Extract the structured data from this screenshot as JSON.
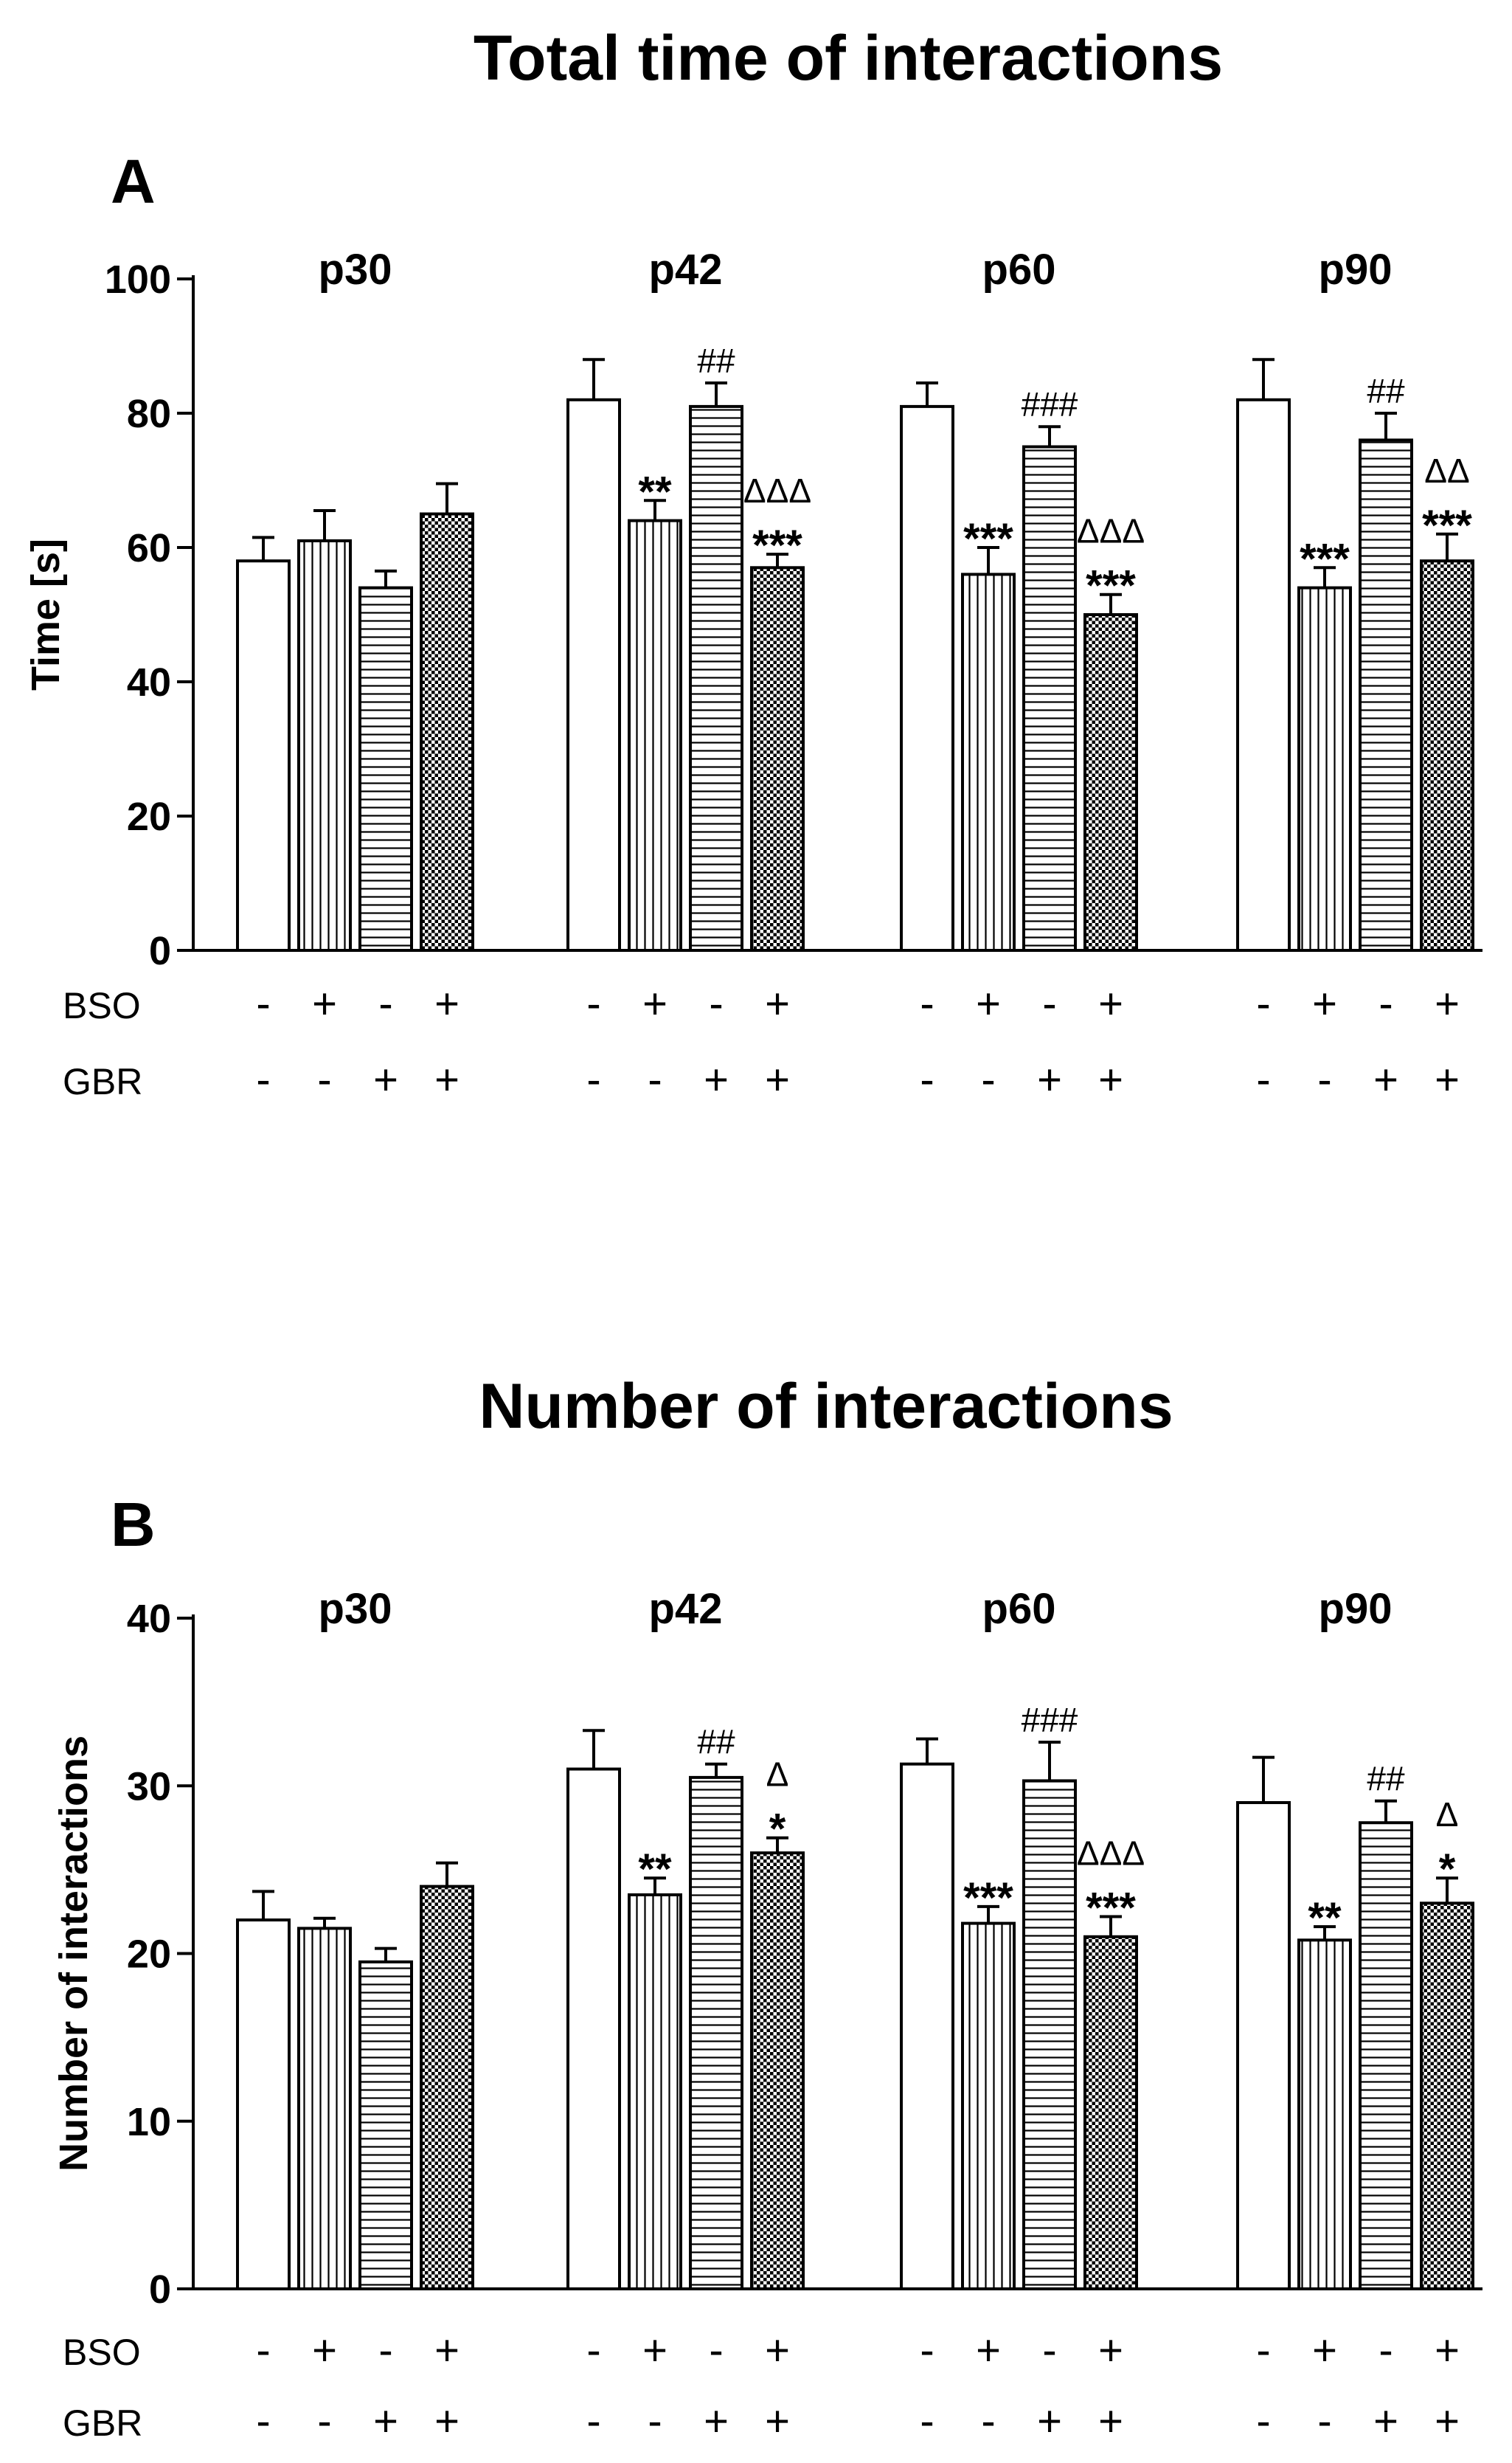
{
  "figure": {
    "title_a": "Total time of interactions",
    "title_b": "Number of interactions"
  },
  "colors": {
    "ink": "#000000",
    "bar_fill": "#ffffff"
  },
  "patterns": [
    "empty",
    "vertical-stripes",
    "horizontal-stripes",
    "checkerboard"
  ],
  "treatment_rows": [
    {
      "label": "BSO",
      "signs": [
        "-",
        "+",
        "-",
        "+"
      ]
    },
    {
      "label": "GBR",
      "signs": [
        "-",
        "-",
        "+",
        "+"
      ]
    }
  ],
  "chart_data": [
    {
      "type": "bar",
      "panel": "A",
      "title": "Total time of interactions",
      "ylabel": "Time [s]",
      "ylim": [
        0,
        100
      ],
      "yticks": [
        0,
        20,
        40,
        60,
        80,
        100
      ],
      "groups": [
        "p30",
        "p42",
        "p60",
        "p90"
      ],
      "series": [
        {
          "name": "BSO- GBR-",
          "values": [
            58,
            82,
            81,
            82
          ],
          "errors": [
            3.5,
            6,
            3.5,
            6
          ]
        },
        {
          "name": "BSO+ GBR-",
          "values": [
            61,
            64,
            56,
            54
          ],
          "errors": [
            4.5,
            3,
            4,
            3
          ]
        },
        {
          "name": "BSO- GBR+",
          "values": [
            54,
            81,
            75,
            76
          ],
          "errors": [
            2.5,
            3.5,
            3,
            4
          ]
        },
        {
          "name": "BSO+ GBR+",
          "values": [
            65,
            57,
            50,
            58
          ],
          "errors": [
            4.5,
            2,
            3,
            4
          ]
        }
      ],
      "annotations": [
        {
          "group": 1,
          "bar": 1,
          "lines": [
            "**"
          ]
        },
        {
          "group": 1,
          "bar": 2,
          "lines": [
            "##"
          ]
        },
        {
          "group": 1,
          "bar": 3,
          "lines": [
            "ΔΔΔ",
            "***"
          ]
        },
        {
          "group": 2,
          "bar": 1,
          "lines": [
            "***"
          ]
        },
        {
          "group": 2,
          "bar": 2,
          "lines": [
            "###"
          ]
        },
        {
          "group": 2,
          "bar": 3,
          "lines": [
            "ΔΔΔ",
            "***"
          ]
        },
        {
          "group": 3,
          "bar": 1,
          "lines": [
            "***"
          ]
        },
        {
          "group": 3,
          "bar": 2,
          "lines": [
            "##"
          ]
        },
        {
          "group": 3,
          "bar": 3,
          "lines": [
            "ΔΔ",
            "***"
          ]
        }
      ]
    },
    {
      "type": "bar",
      "panel": "B",
      "title": "Number of interactions",
      "ylabel": "Number of interactions",
      "ylim": [
        0,
        40
      ],
      "yticks": [
        0,
        10,
        20,
        30,
        40
      ],
      "groups": [
        "p30",
        "p42",
        "p60",
        "p90"
      ],
      "series": [
        {
          "name": "BSO- GBR-",
          "values": [
            22,
            31,
            31.3,
            29
          ],
          "errors": [
            1.7,
            2.3,
            1.5,
            2.7
          ]
        },
        {
          "name": "BSO+ GBR-",
          "values": [
            21.5,
            23.5,
            21.8,
            20.8
          ],
          "errors": [
            0.6,
            1,
            1,
            0.8
          ]
        },
        {
          "name": "BSO- GBR+",
          "values": [
            19.5,
            30.5,
            30.3,
            27.8
          ],
          "errors": [
            0.8,
            0.8,
            2.3,
            1.3
          ]
        },
        {
          "name": "BSO+ GBR+",
          "values": [
            24,
            26,
            21,
            23
          ],
          "errors": [
            1.4,
            0.9,
            1.2,
            1.5
          ]
        }
      ],
      "annotations": [
        {
          "group": 1,
          "bar": 1,
          "lines": [
            "**"
          ]
        },
        {
          "group": 1,
          "bar": 2,
          "lines": [
            "##"
          ]
        },
        {
          "group": 1,
          "bar": 3,
          "lines": [
            "Δ",
            "*"
          ]
        },
        {
          "group": 2,
          "bar": 1,
          "lines": [
            "***"
          ]
        },
        {
          "group": 2,
          "bar": 2,
          "lines": [
            "###"
          ]
        },
        {
          "group": 2,
          "bar": 3,
          "lines": [
            "ΔΔΔ",
            "***"
          ]
        },
        {
          "group": 3,
          "bar": 1,
          "lines": [
            "**"
          ]
        },
        {
          "group": 3,
          "bar": 2,
          "lines": [
            "##"
          ]
        },
        {
          "group": 3,
          "bar": 3,
          "lines": [
            "Δ",
            "*"
          ]
        }
      ]
    }
  ]
}
